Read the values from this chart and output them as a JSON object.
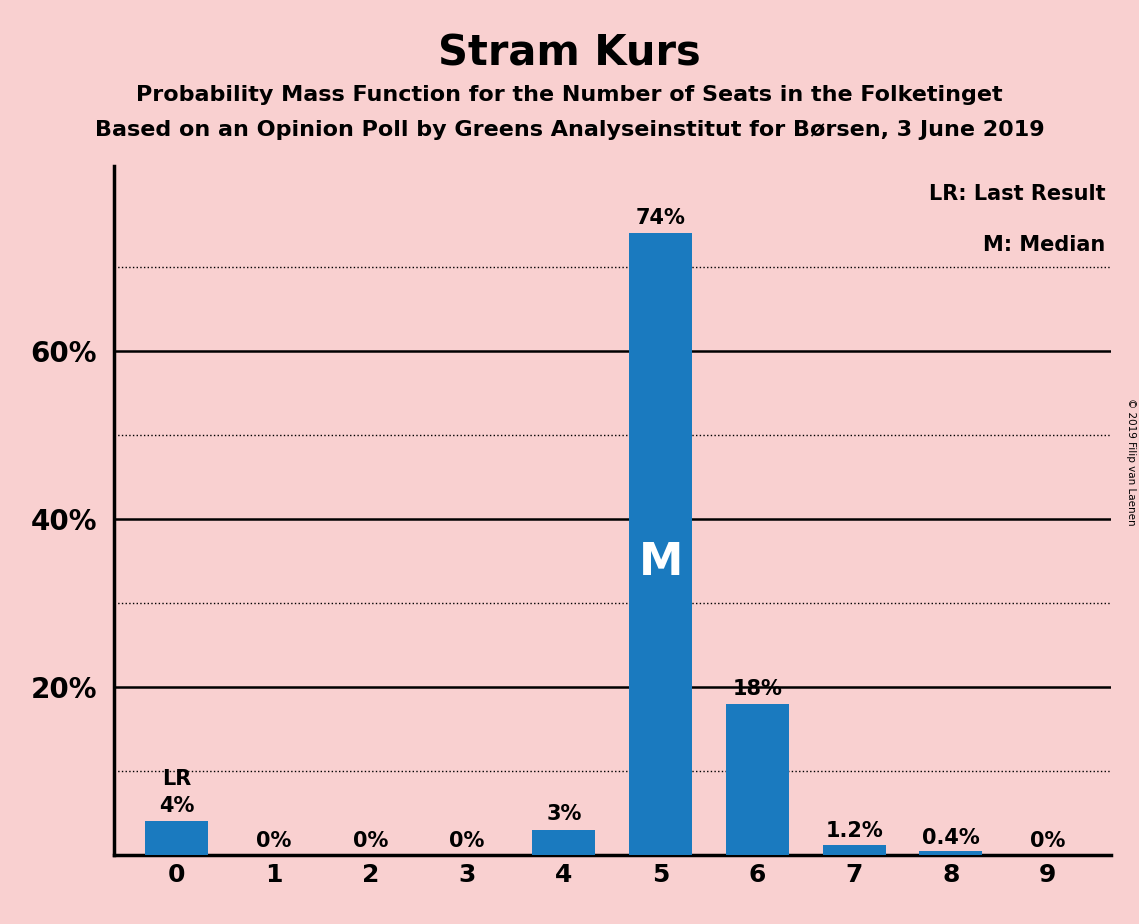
{
  "title": "Stram Kurs",
  "subtitle1": "Probability Mass Function for the Number of Seats in the Folketinget",
  "subtitle2": "Based on an Opinion Poll by Greens Analyseinstitut for Børsen, 3 June 2019",
  "categories": [
    0,
    1,
    2,
    3,
    4,
    5,
    6,
    7,
    8,
    9
  ],
  "values": [
    0.04,
    0.0,
    0.0,
    0.0,
    0.03,
    0.74,
    0.18,
    0.012,
    0.004,
    0.0
  ],
  "labels": [
    "4%",
    "0%",
    "0%",
    "0%",
    "3%",
    "74%",
    "18%",
    "1.2%",
    "0.4%",
    "0%"
  ],
  "bar_color": "#1a7abf",
  "background_color": "#f9d0d0",
  "median_bar": 5,
  "lr_bar": 0,
  "median_label": "M",
  "lr_label": "LR",
  "legend_lr": "LR: Last Result",
  "legend_m": "M: Median",
  "watermark": "© 2019 Filip van Laenen",
  "title_fontsize": 30,
  "subtitle_fontsize": 16,
  "bar_width": 0.65,
  "ylim_max": 0.82,
  "solid_gridlines": [
    0.2,
    0.4,
    0.6
  ],
  "dotted_gridlines": [
    0.1,
    0.3,
    0.5,
    0.7
  ],
  "ylabel_ticks": [
    0.2,
    0.4,
    0.6
  ],
  "ylabel_labels": [
    "20%",
    "40%",
    "60%"
  ]
}
